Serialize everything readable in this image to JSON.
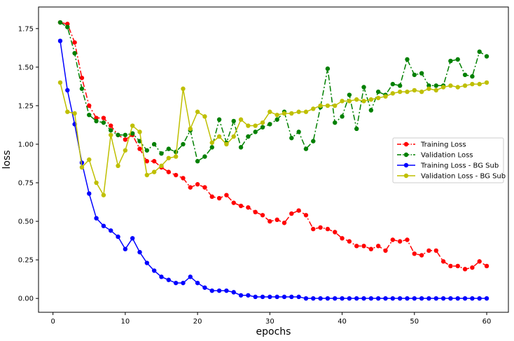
{
  "chart_data": {
    "type": "line",
    "title": "",
    "xlabel": "epochs",
    "ylabel": "loss",
    "xlim": [
      -2,
      63
    ],
    "ylim": [
      -0.09,
      1.89
    ],
    "xticks": [
      0,
      10,
      20,
      30,
      40,
      50,
      60
    ],
    "yticks": [
      0.0,
      0.25,
      0.5,
      0.75,
      1.0,
      1.25,
      1.5,
      1.75
    ],
    "ytick_labels": [
      "0.00",
      "0.25",
      "0.50",
      "0.75",
      "1.00",
      "1.25",
      "1.50",
      "1.75"
    ],
    "grid": false,
    "legend_position": "center-right",
    "x": [
      1,
      2,
      3,
      4,
      5,
      6,
      7,
      8,
      9,
      10,
      11,
      12,
      13,
      14,
      15,
      16,
      17,
      18,
      19,
      20,
      21,
      22,
      23,
      24,
      25,
      26,
      27,
      28,
      29,
      30,
      31,
      32,
      33,
      34,
      35,
      36,
      37,
      38,
      39,
      40,
      41,
      42,
      43,
      44,
      45,
      46,
      47,
      48,
      49,
      50,
      51,
      52,
      53,
      54,
      55,
      56,
      57,
      58,
      59,
      60
    ],
    "series": [
      {
        "name": "Training Loss",
        "color": "#ff0000",
        "linestyle": "dashdot",
        "values": [
          1.79,
          1.78,
          1.66,
          1.43,
          1.25,
          1.17,
          1.17,
          1.12,
          1.06,
          1.03,
          1.06,
          0.97,
          0.89,
          0.89,
          0.85,
          0.82,
          0.8,
          0.78,
          0.72,
          0.74,
          0.72,
          0.66,
          0.65,
          0.67,
          0.62,
          0.6,
          0.59,
          0.56,
          0.54,
          0.5,
          0.51,
          0.49,
          0.55,
          0.57,
          0.54,
          0.45,
          0.46,
          0.45,
          0.43,
          0.39,
          0.37,
          0.34,
          0.34,
          0.32,
          0.34,
          0.31,
          0.38,
          0.37,
          0.38,
          0.29,
          0.28,
          0.31,
          0.31,
          0.24,
          0.21,
          0.21,
          0.19,
          0.2,
          0.24,
          0.21
        ]
      },
      {
        "name": "Validation Loss",
        "color": "#008000",
        "linestyle": "dashdot",
        "values": [
          1.79,
          1.76,
          1.59,
          1.36,
          1.19,
          1.15,
          1.14,
          1.09,
          1.06,
          1.06,
          1.07,
          1.02,
          0.96,
          1.0,
          0.94,
          0.97,
          0.95,
          1.0,
          1.09,
          0.89,
          0.92,
          0.98,
          1.16,
          1.01,
          1.15,
          0.98,
          1.05,
          1.08,
          1.11,
          1.13,
          1.16,
          1.21,
          1.04,
          1.08,
          0.97,
          1.02,
          1.24,
          1.49,
          1.14,
          1.18,
          1.32,
          1.1,
          1.37,
          1.22,
          1.34,
          1.32,
          1.39,
          1.38,
          1.55,
          1.45,
          1.46,
          1.38,
          1.38,
          1.38,
          1.54,
          1.55,
          1.45,
          1.44,
          1.6,
          1.57
        ]
      },
      {
        "name": "Training Loss - BG Sub",
        "color": "#0000ff",
        "linestyle": "solid",
        "values": [
          1.67,
          1.35,
          1.13,
          0.88,
          0.68,
          0.52,
          0.47,
          0.44,
          0.4,
          0.32,
          0.39,
          0.3,
          0.23,
          0.18,
          0.14,
          0.12,
          0.1,
          0.1,
          0.14,
          0.1,
          0.07,
          0.05,
          0.05,
          0.05,
          0.04,
          0.02,
          0.02,
          0.01,
          0.01,
          0.01,
          0.01,
          0.01,
          0.01,
          0.01,
          0.0,
          0.0,
          0.0,
          0.0,
          0.0,
          0.0,
          0.0,
          0.0,
          0.0,
          0.0,
          0.0,
          0.0,
          0.0,
          0.0,
          0.0,
          0.0,
          0.0,
          0.0,
          0.0,
          0.0,
          0.0,
          0.0,
          0.0,
          0.0,
          0.0,
          0.0
        ]
      },
      {
        "name": "Validation Loss - BG Sub",
        "color": "#bfbf00",
        "linestyle": "solid",
        "values": [
          1.4,
          1.21,
          1.2,
          0.85,
          0.9,
          0.75,
          0.67,
          1.06,
          0.86,
          0.96,
          1.12,
          1.08,
          0.8,
          0.82,
          0.86,
          0.91,
          0.92,
          1.36,
          1.1,
          1.21,
          1.18,
          1.01,
          1.05,
          1.0,
          1.05,
          1.16,
          1.12,
          1.12,
          1.14,
          1.21,
          1.19,
          1.2,
          1.2,
          1.21,
          1.21,
          1.23,
          1.25,
          1.25,
          1.25,
          1.28,
          1.28,
          1.29,
          1.28,
          1.29,
          1.3,
          1.31,
          1.33,
          1.34,
          1.34,
          1.35,
          1.34,
          1.36,
          1.35,
          1.37,
          1.38,
          1.37,
          1.38,
          1.39,
          1.39,
          1.4
        ]
      }
    ]
  }
}
